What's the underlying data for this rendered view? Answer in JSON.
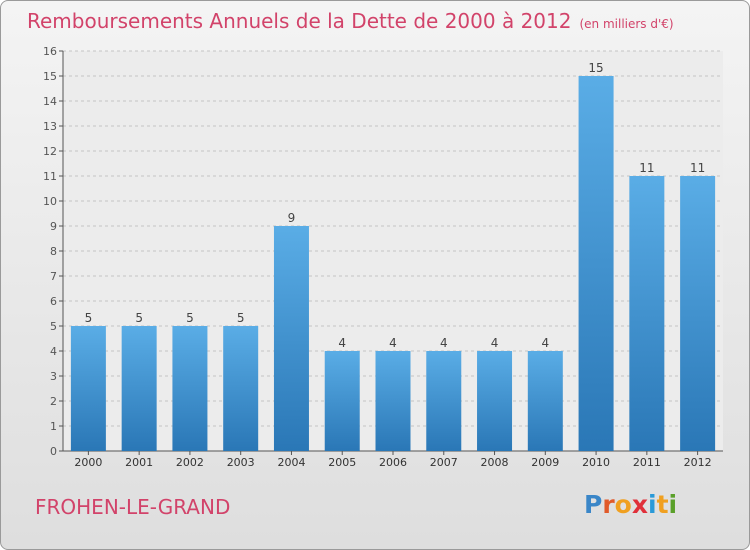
{
  "title": "Remboursements Annuels de la Dette de 2000 à 2012",
  "subtitle": "(en milliers d'€)",
  "commune": "FROHEN-LE-GRAND",
  "logo": {
    "letters": [
      "P",
      "r",
      "o",
      "x",
      "i",
      "t",
      "i"
    ],
    "colors": [
      "#3a86c8",
      "#e05a2a",
      "#f0a020",
      "#e0303a",
      "#2a9ad8",
      "#f0a020",
      "#5aa02a"
    ]
  },
  "colors": {
    "bar_top": "#5aade6",
    "bar_bottom": "#2a77b6",
    "accent": "#d2436a"
  },
  "chart_data": {
    "type": "bar",
    "categories": [
      "2000",
      "2001",
      "2002",
      "2003",
      "2004",
      "2005",
      "2006",
      "2007",
      "2008",
      "2009",
      "2010",
      "2011",
      "2012"
    ],
    "values": [
      5,
      5,
      5,
      5,
      9,
      4,
      4,
      4,
      4,
      4,
      15,
      11,
      11
    ],
    "data_labels": [
      "5",
      "5",
      "5",
      "5",
      "9",
      "4",
      "4",
      "4",
      "4",
      "4",
      "15",
      "11",
      "11"
    ],
    "title": "Remboursements Annuels de la Dette de 2000 à 2012",
    "xlabel": "",
    "ylabel": "",
    "ylim": [
      0,
      16
    ],
    "yticks": [
      "0",
      "1",
      "2",
      "3",
      "4",
      "5",
      "6",
      "7",
      "8",
      "9",
      "10",
      "11",
      "12",
      "13",
      "14",
      "15",
      "16"
    ],
    "grid": true
  }
}
